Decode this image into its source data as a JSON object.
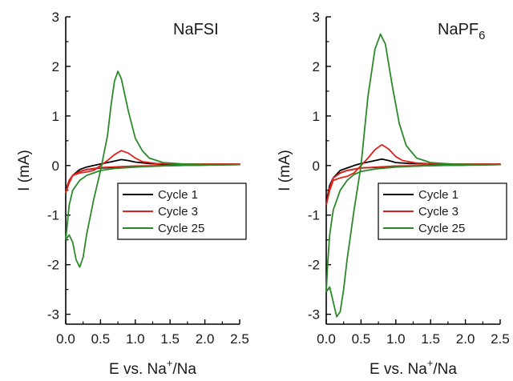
{
  "chart_data": [
    {
      "type": "line",
      "title": "NaFSI",
      "xlabel": {
        "main": "E vs. Na",
        "sup": "+",
        "tail": "/Na"
      },
      "ylabel": "I (mA)",
      "xlim": [
        0,
        2.5
      ],
      "ylim": [
        -3.2,
        3.0
      ],
      "xticks": [
        "0.0",
        "0.5",
        "1.0",
        "1.5",
        "2.0",
        "2.5"
      ],
      "yticks": [
        "-3",
        "-2",
        "-1",
        "0",
        "1",
        "2",
        "3"
      ],
      "grid": false,
      "legend_position": "center-right",
      "series": [
        {
          "name": "Cycle 1",
          "color": "#000000",
          "forward": [
            [
              0.0,
              -0.5
            ],
            [
              0.05,
              -0.32
            ],
            [
              0.1,
              -0.2
            ],
            [
              0.2,
              -0.08
            ],
            [
              0.3,
              -0.03
            ],
            [
              0.4,
              0.0
            ],
            [
              0.5,
              0.03
            ],
            [
              0.6,
              0.06
            ],
            [
              0.7,
              0.09
            ],
            [
              0.8,
              0.12
            ],
            [
              0.9,
              0.1
            ],
            [
              1.0,
              0.07
            ],
            [
              1.2,
              0.04
            ],
            [
              1.5,
              0.02
            ],
            [
              2.0,
              0.02
            ],
            [
              2.5,
              0.02
            ]
          ],
          "reverse": [
            [
              2.5,
              0.01
            ],
            [
              2.0,
              0.01
            ],
            [
              1.5,
              0.0
            ],
            [
              1.0,
              -0.02
            ],
            [
              0.5,
              -0.05
            ],
            [
              0.3,
              -0.08
            ],
            [
              0.2,
              -0.12
            ],
            [
              0.1,
              -0.2
            ],
            [
              0.05,
              -0.3
            ],
            [
              0.0,
              -0.5
            ]
          ]
        },
        {
          "name": "Cycle 3",
          "color": "#e0201b",
          "forward": [
            [
              0.0,
              -0.55
            ],
            [
              0.05,
              -0.35
            ],
            [
              0.1,
              -0.2
            ],
            [
              0.2,
              -0.15
            ],
            [
              0.3,
              -0.13
            ],
            [
              0.4,
              -0.1
            ],
            [
              0.5,
              0.0
            ],
            [
              0.6,
              0.1
            ],
            [
              0.7,
              0.22
            ],
            [
              0.8,
              0.3
            ],
            [
              0.9,
              0.25
            ],
            [
              1.0,
              0.15
            ],
            [
              1.1,
              0.08
            ],
            [
              1.3,
              0.04
            ],
            [
              1.6,
              0.03
            ],
            [
              2.0,
              0.03
            ],
            [
              2.5,
              0.03
            ]
          ],
          "reverse": [
            [
              2.5,
              0.01
            ],
            [
              2.0,
              0.01
            ],
            [
              1.5,
              0.0
            ],
            [
              1.0,
              -0.01
            ],
            [
              0.5,
              -0.04
            ],
            [
              0.3,
              -0.08
            ],
            [
              0.2,
              -0.12
            ],
            [
              0.1,
              -0.2
            ],
            [
              0.05,
              -0.3
            ],
            [
              0.0,
              -0.55
            ]
          ]
        },
        {
          "name": "Cycle 25",
          "color": "#2a8a2a",
          "forward": [
            [
              0.0,
              -1.5
            ],
            [
              0.05,
              -1.4
            ],
            [
              0.1,
              -1.55
            ],
            [
              0.15,
              -1.9
            ],
            [
              0.2,
              -2.05
            ],
            [
              0.25,
              -1.85
            ],
            [
              0.3,
              -1.4
            ],
            [
              0.4,
              -0.7
            ],
            [
              0.5,
              -0.1
            ],
            [
              0.6,
              0.6
            ],
            [
              0.65,
              1.2
            ],
            [
              0.7,
              1.7
            ],
            [
              0.75,
              1.9
            ],
            [
              0.8,
              1.75
            ],
            [
              0.9,
              1.1
            ],
            [
              1.0,
              0.55
            ],
            [
              1.1,
              0.3
            ],
            [
              1.2,
              0.15
            ],
            [
              1.4,
              0.06
            ],
            [
              1.7,
              0.03
            ],
            [
              2.0,
              0.02
            ],
            [
              2.5,
              0.02
            ]
          ],
          "reverse": [
            [
              2.5,
              0.01
            ],
            [
              2.0,
              0.01
            ],
            [
              1.5,
              0.0
            ],
            [
              1.0,
              -0.03
            ],
            [
              0.7,
              -0.06
            ],
            [
              0.5,
              -0.1
            ],
            [
              0.4,
              -0.15
            ],
            [
              0.3,
              -0.2
            ],
            [
              0.2,
              -0.3
            ],
            [
              0.1,
              -0.5
            ],
            [
              0.05,
              -0.8
            ],
            [
              0.0,
              -1.5
            ]
          ]
        }
      ]
    },
    {
      "type": "line",
      "title": {
        "main": "NaPF",
        "sub": "6"
      },
      "xlabel": {
        "main": "E vs. Na",
        "sup": "+",
        "tail": "/Na"
      },
      "ylabel": "I (mA)",
      "xlim": [
        0,
        2.5
      ],
      "ylim": [
        -3.2,
        3.0
      ],
      "xticks": [
        "0.0",
        "0.5",
        "1.0",
        "1.5",
        "2.0",
        "2.5"
      ],
      "yticks": [
        "-3",
        "-2",
        "-1",
        "0",
        "1",
        "2",
        "3"
      ],
      "grid": false,
      "legend_position": "center-right",
      "series": [
        {
          "name": "Cycle 1",
          "color": "#000000",
          "forward": [
            [
              0.0,
              -0.75
            ],
            [
              0.05,
              -0.45
            ],
            [
              0.1,
              -0.25
            ],
            [
              0.2,
              -0.1
            ],
            [
              0.3,
              -0.05
            ],
            [
              0.4,
              0.0
            ],
            [
              0.5,
              0.04
            ],
            [
              0.6,
              0.07
            ],
            [
              0.7,
              0.1
            ],
            [
              0.8,
              0.13
            ],
            [
              0.9,
              0.1
            ],
            [
              1.0,
              0.06
            ],
            [
              1.2,
              0.04
            ],
            [
              1.5,
              0.03
            ],
            [
              2.0,
              0.02
            ],
            [
              2.5,
              0.02
            ]
          ],
          "reverse": [
            [
              2.5,
              0.01
            ],
            [
              2.0,
              0.01
            ],
            [
              1.5,
              0.0
            ],
            [
              1.0,
              -0.02
            ],
            [
              0.5,
              -0.05
            ],
            [
              0.3,
              -0.1
            ],
            [
              0.2,
              -0.15
            ],
            [
              0.1,
              -0.25
            ],
            [
              0.05,
              -0.4
            ],
            [
              0.0,
              -0.75
            ]
          ]
        },
        {
          "name": "Cycle 3",
          "color": "#e0201b",
          "forward": [
            [
              0.0,
              -0.8
            ],
            [
              0.05,
              -0.5
            ],
            [
              0.1,
              -0.3
            ],
            [
              0.2,
              -0.25
            ],
            [
              0.3,
              -0.22
            ],
            [
              0.4,
              -0.15
            ],
            [
              0.5,
              0.0
            ],
            [
              0.6,
              0.15
            ],
            [
              0.7,
              0.32
            ],
            [
              0.8,
              0.42
            ],
            [
              0.9,
              0.33
            ],
            [
              1.0,
              0.18
            ],
            [
              1.1,
              0.1
            ],
            [
              1.3,
              0.05
            ],
            [
              1.6,
              0.03
            ],
            [
              2.0,
              0.03
            ],
            [
              2.5,
              0.03
            ]
          ],
          "reverse": [
            [
              2.5,
              0.01
            ],
            [
              2.0,
              0.01
            ],
            [
              1.5,
              0.0
            ],
            [
              1.0,
              -0.01
            ],
            [
              0.5,
              -0.05
            ],
            [
              0.3,
              -0.1
            ],
            [
              0.2,
              -0.15
            ],
            [
              0.1,
              -0.25
            ],
            [
              0.05,
              -0.45
            ],
            [
              0.0,
              -0.8
            ]
          ]
        },
        {
          "name": "Cycle 25",
          "color": "#2a8a2a",
          "forward": [
            [
              0.0,
              -2.55
            ],
            [
              0.05,
              -2.45
            ],
            [
              0.1,
              -2.75
            ],
            [
              0.15,
              -3.05
            ],
            [
              0.2,
              -2.95
            ],
            [
              0.25,
              -2.5
            ],
            [
              0.3,
              -1.9
            ],
            [
              0.4,
              -0.9
            ],
            [
              0.5,
              0.0
            ],
            [
              0.55,
              0.7
            ],
            [
              0.6,
              1.4
            ],
            [
              0.7,
              2.35
            ],
            [
              0.78,
              2.65
            ],
            [
              0.85,
              2.45
            ],
            [
              0.95,
              1.6
            ],
            [
              1.05,
              0.85
            ],
            [
              1.15,
              0.4
            ],
            [
              1.3,
              0.15
            ],
            [
              1.5,
              0.06
            ],
            [
              1.8,
              0.03
            ],
            [
              2.2,
              0.02
            ],
            [
              2.5,
              0.02
            ]
          ],
          "reverse": [
            [
              2.5,
              0.01
            ],
            [
              2.0,
              0.01
            ],
            [
              1.5,
              0.0
            ],
            [
              1.0,
              -0.03
            ],
            [
              0.7,
              -0.07
            ],
            [
              0.5,
              -0.12
            ],
            [
              0.4,
              -0.18
            ],
            [
              0.3,
              -0.3
            ],
            [
              0.2,
              -0.5
            ],
            [
              0.1,
              -0.9
            ],
            [
              0.05,
              -1.4
            ],
            [
              0.02,
              -2.0
            ],
            [
              0.0,
              -2.55
            ]
          ]
        }
      ]
    }
  ]
}
